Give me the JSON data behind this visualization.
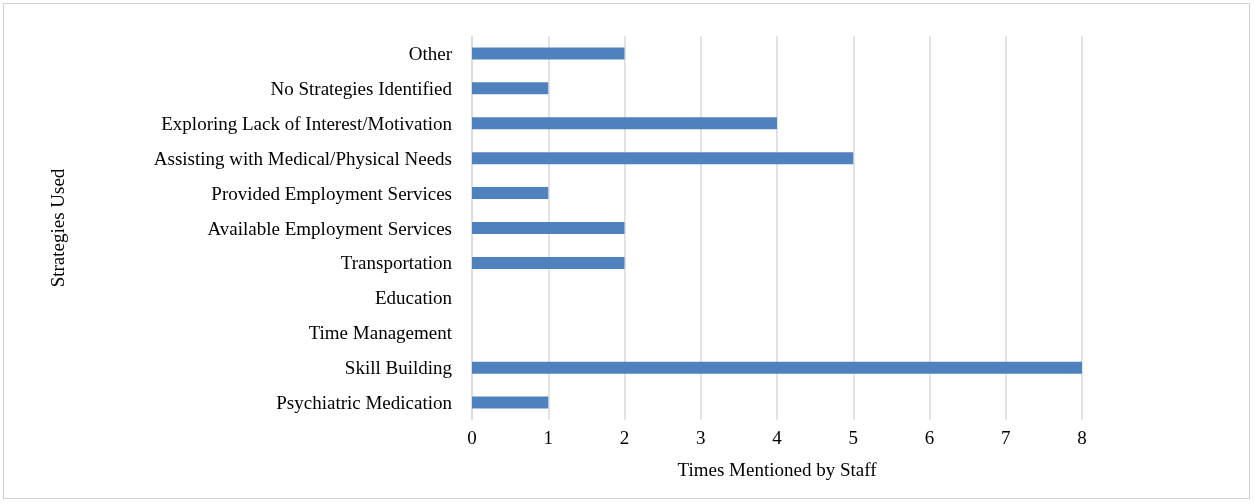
{
  "chart_data": {
    "type": "bar",
    "orientation": "horizontal",
    "xlabel": "Times Mentioned by Staff",
    "ylabel": "Strategies Used",
    "categories": [
      "Other",
      "No Strategies Identified",
      "Exploring Lack of Interest/Motivation",
      "Assisting with Medical/Physical Needs",
      "Provided Employment Services",
      "Available Employment Services",
      "Transportation",
      "Education",
      "Time Management",
      "Skill Building",
      "Psychiatric Medication"
    ],
    "values": [
      2,
      1,
      4,
      5,
      1,
      2,
      2,
      0,
      0,
      8,
      1
    ],
    "color": "#4f81bd",
    "xlim": [
      0,
      8
    ],
    "xticks": [
      0,
      1,
      2,
      3,
      4,
      5,
      6,
      7,
      8
    ],
    "grid": "x"
  }
}
